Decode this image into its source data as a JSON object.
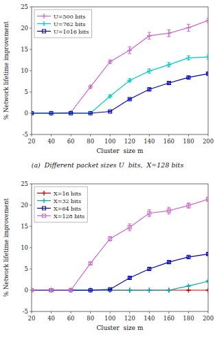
{
  "chart_data": [
    {
      "type": "line",
      "title": "(a)  Different packet sizes U  bits,  X=128 bits",
      "x_label": "Cluster  size m",
      "y_label": "% Network lifetime improvement",
      "x": [
        20,
        40,
        60,
        80,
        100,
        120,
        140,
        160,
        180,
        200
      ],
      "xlim": [
        20,
        200
      ],
      "xticks": [
        20,
        40,
        60,
        80,
        100,
        120,
        140,
        160,
        180,
        200
      ],
      "ylim": [
        -5,
        25
      ],
      "yticks": [
        -5,
        0,
        5,
        10,
        15,
        20,
        25
      ],
      "grid": false,
      "legend": "upper-left",
      "series": [
        {
          "name": "U=500 bits",
          "color": "#cc66cc",
          "marker": "plus",
          "values": [
            0.0,
            0.0,
            0.2,
            6.2,
            12.1,
            14.8,
            18.2,
            18.8,
            20.1,
            21.8
          ],
          "errors": [
            0.05,
            0.05,
            0.1,
            0.3,
            0.4,
            0.8,
            0.8,
            0.8,
            0.8,
            0.5
          ]
        },
        {
          "name": "U=762 bits",
          "color": "#00cccc",
          "marker": "plus",
          "values": [
            0.0,
            0.0,
            0.0,
            0.0,
            4.0,
            7.7,
            9.9,
            11.4,
            13.0,
            13.2
          ],
          "errors": [
            0.05,
            0.05,
            0.05,
            0.05,
            0.3,
            0.4,
            0.5,
            0.5,
            0.5,
            0.5
          ]
        },
        {
          "name": "U=1016 bits",
          "color": "#0000bb",
          "marker": "square",
          "values": [
            0.0,
            0.0,
            0.0,
            0.0,
            0.4,
            3.3,
            5.6,
            7.1,
            8.4,
            9.3
          ],
          "errors": [
            0.05,
            0.05,
            0.05,
            0.05,
            0.1,
            0.2,
            0.3,
            0.3,
            0.3,
            0.3
          ]
        }
      ]
    },
    {
      "type": "line",
      "x_label": "Cluster  size m",
      "y_label": "% Network lifetime improvement",
      "x": [
        20,
        40,
        60,
        80,
        100,
        120,
        140,
        160,
        180,
        200
      ],
      "xlim": [
        20,
        200
      ],
      "xticks": [
        20,
        40,
        60,
        80,
        100,
        120,
        140,
        160,
        180,
        200
      ],
      "ylim": [
        -5,
        25
      ],
      "yticks": [
        -5,
        0,
        5,
        10,
        15,
        20,
        25
      ],
      "grid": false,
      "legend": "upper-left",
      "series": [
        {
          "name": "X=16 bits",
          "color": "#cc0000",
          "marker": "plus",
          "values": [
            0.0,
            0.0,
            0.0,
            0.0,
            0.0,
            0.0,
            0.0,
            0.0,
            0.0,
            0.0
          ],
          "errors": [
            0.05,
            0.05,
            0.05,
            0.05,
            0.05,
            0.05,
            0.05,
            0.05,
            0.05,
            0.05
          ]
        },
        {
          "name": "X=32 bits",
          "color": "#00aaaa",
          "marker": "plus",
          "values": [
            0.0,
            0.0,
            0.0,
            0.0,
            0.0,
            0.0,
            0.0,
            0.0,
            1.0,
            2.1
          ],
          "errors": [
            0.05,
            0.05,
            0.05,
            0.05,
            0.05,
            0.05,
            0.05,
            0.05,
            0.1,
            0.2
          ]
        },
        {
          "name": "X=64 bits",
          "color": "#0000bb",
          "marker": "square",
          "values": [
            0.0,
            0.0,
            0.0,
            0.0,
            0.2,
            2.9,
            5.0,
            6.6,
            7.8,
            8.5
          ],
          "errors": [
            0.05,
            0.05,
            0.05,
            0.05,
            0.1,
            0.2,
            0.3,
            0.3,
            0.3,
            0.3
          ]
        },
        {
          "name": "X=128 bits",
          "color": "#cc66cc",
          "marker": "square",
          "values": [
            0.0,
            0.0,
            0.0,
            6.3,
            12.1,
            14.8,
            18.1,
            18.7,
            19.9,
            21.4
          ],
          "errors": [
            0.05,
            0.05,
            0.05,
            0.3,
            0.5,
            0.8,
            0.8,
            0.8,
            0.6,
            0.5
          ]
        }
      ]
    }
  ]
}
